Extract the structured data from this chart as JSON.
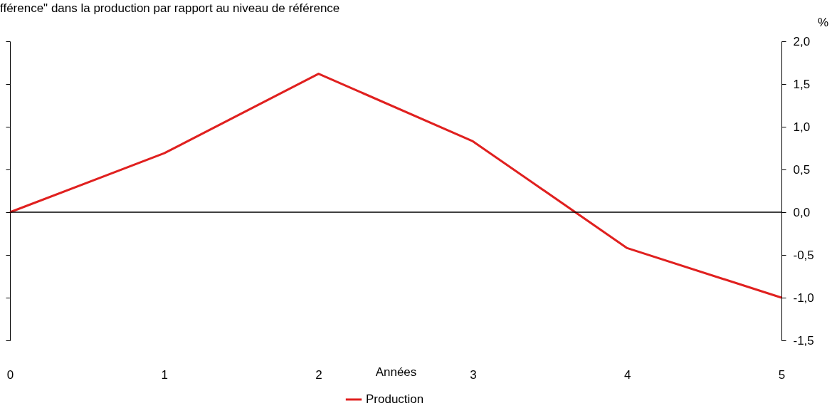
{
  "chart_data": {
    "type": "line",
    "title": "fférence\" dans la production par rapport au niveau de référence",
    "xlabel": "Années",
    "ylabel": "%",
    "x": [
      0,
      1,
      2,
      3,
      4,
      5
    ],
    "series": [
      {
        "name": "Production",
        "color": "#e0201f",
        "values": [
          0,
          0.69,
          1.62,
          0.83,
          -0.42,
          -1.0
        ]
      }
    ],
    "xlim": [
      0,
      5
    ],
    "xticks": [
      0,
      1,
      2,
      3,
      4,
      5
    ],
    "ylim": [
      -1.5,
      2.0
    ],
    "yticks": [
      {
        "value": -1.5,
        "label": "-1,5"
      },
      {
        "value": -1.0,
        "label": "-1,0"
      },
      {
        "value": -0.5,
        "label": "-0,5"
      },
      {
        "value": 0,
        "label": "0,0"
      },
      {
        "value": 0.5,
        "label": "0,5"
      },
      {
        "value": 1.0,
        "label": "1,0"
      },
      {
        "value": 1.5,
        "label": "1,5"
      },
      {
        "value": 2.0,
        "label": "2,0"
      }
    ],
    "ref_lines": [
      {
        "axis": "y",
        "value": 0,
        "color": "#000000"
      }
    ],
    "grid": false,
    "legend": "bottom",
    "marker": "none",
    "line_style": "solid"
  }
}
